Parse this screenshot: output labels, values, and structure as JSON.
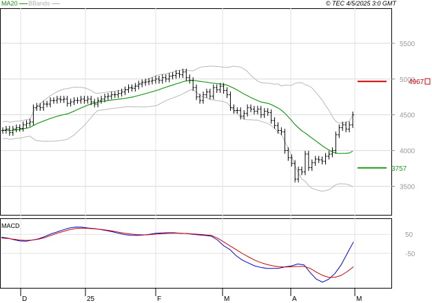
{
  "header": {
    "legend": [
      {
        "label": "MA20",
        "color": "#1a8f1a"
      },
      {
        "label": "BBands",
        "color": "#b0b0b0"
      }
    ],
    "stamp": "© TEC 4/5/2025 3:0 GMT"
  },
  "chart_data": [
    {
      "type": "candlestick",
      "title": "",
      "x_ticks": [
        "D",
        "25",
        "F",
        "M",
        "A",
        "M"
      ],
      "y_ticks": [
        3500,
        4000,
        4500,
        5000,
        5500
      ],
      "y_tick_labels": [
        "3500",
        "4000",
        "4500",
        "5000",
        "5500"
      ],
      "ylim": [
        3100,
        5990
      ],
      "grid": true,
      "price_close": [
        4280,
        4300,
        4250,
        4300,
        4320,
        4310,
        4360,
        4380,
        4400,
        4600,
        4620,
        4600,
        4650,
        4650,
        4700,
        4700,
        4720,
        4710,
        4720,
        4660,
        4680,
        4700,
        4700,
        4720,
        4700,
        4720,
        4680,
        4650,
        4700,
        4720,
        4750,
        4760,
        4780,
        4780,
        4800,
        4820,
        4850,
        4880,
        4870,
        4900,
        4930,
        4950,
        4960,
        4970,
        4980,
        5000,
        4980,
        5020,
        5000,
        5040,
        5050,
        5080,
        5060,
        5100,
        5020,
        4980,
        4880,
        4750,
        4700,
        4780,
        4820,
        4760,
        4880,
        4850,
        4900,
        4840,
        4780,
        4600,
        4560,
        4560,
        4480,
        4520,
        4600,
        4580,
        4550,
        4580,
        4500,
        4550,
        4530,
        4420,
        4350,
        4280,
        4260,
        4000,
        3900,
        3820,
        3600,
        3730,
        3700,
        3950,
        3760,
        3830,
        3880,
        3870,
        3850,
        3920,
        3950,
        4000,
        4220,
        4320,
        4360,
        4300,
        4360,
        4500
      ],
      "bands_note": "Bollinger bands around MA20",
      "levels": [
        {
          "label": "4967",
          "value": 4967,
          "color": "#cc0000"
        },
        {
          "label": "3757",
          "value": 3757,
          "color": "#1a9a1a"
        }
      ]
    },
    {
      "type": "line",
      "title": "MACD",
      "y_tick_labels": [
        "50",
        "-50"
      ],
      "y_ticks": [
        50,
        -50
      ],
      "ylim": [
        -230,
        130
      ],
      "series": [
        {
          "color": "#0000cc",
          "values": [
            35,
            30,
            22,
            15,
            14,
            20,
            26,
            38,
            52,
            62,
            73,
            83,
            88,
            87,
            83,
            80,
            75,
            70,
            63,
            55,
            48,
            45,
            44,
            46,
            50,
            55,
            57,
            58,
            58,
            55,
            54,
            50,
            47,
            44,
            40,
            20,
            -10,
            -30,
            -62,
            -85,
            -100,
            -115,
            -123,
            -128,
            -128,
            -127,
            -120,
            -115,
            -105,
            -110,
            -150,
            -185,
            -200,
            -185,
            -155,
            -110,
            -50,
            10
          ]
        },
        {
          "color": "#cc0000",
          "values": [
            30,
            28,
            24,
            20,
            18,
            20,
            24,
            32,
            44,
            55,
            65,
            74,
            80,
            82,
            81,
            79,
            76,
            72,
            67,
            61,
            55,
            51,
            48,
            47,
            48,
            51,
            53,
            55,
            56,
            55,
            54,
            52,
            50,
            47,
            44,
            30,
            10,
            -10,
            -30,
            -50,
            -68,
            -85,
            -98,
            -108,
            -115,
            -120,
            -121,
            -120,
            -118,
            -118,
            -128,
            -148,
            -165,
            -175,
            -175,
            -165,
            -145,
            -120
          ]
        }
      ]
    }
  ]
}
